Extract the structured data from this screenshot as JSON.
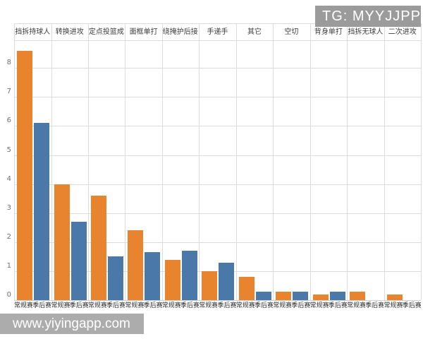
{
  "watermarks": {
    "tg_badge": "TG: MYYJJPP",
    "site": "www.yiyingapp.com"
  },
  "chart_data": {
    "type": "bar",
    "title": "",
    "xlabel": "",
    "ylabel": "",
    "categories": [
      "挡拆持球人",
      "转换进攻",
      "定点投篮成..",
      "面框单打",
      "绕掩护后接..",
      "手递手",
      "其它",
      "空切",
      "背身单打",
      "挡拆无球人",
      "二次进攻"
    ],
    "x_sub_labels": [
      "常规赛",
      "季后赛"
    ],
    "series": [
      {
        "name": "常规赛",
        "color": "#e8832e",
        "values": [
          8.6,
          4.0,
          3.6,
          2.4,
          1.4,
          1.0,
          0.8,
          0.3,
          0.2,
          0.3,
          0.2
        ]
      },
      {
        "name": "季后赛",
        "color": "#4a78a8",
        "values": [
          6.1,
          2.7,
          1.5,
          1.65,
          1.7,
          1.3,
          0.3,
          0.3,
          0.3,
          0,
          0
        ]
      }
    ],
    "y_ticks": [
      0,
      1,
      2,
      3,
      4,
      5,
      6,
      7,
      8
    ],
    "ylim": [
      0,
      9.1
    ],
    "grid": true,
    "legend_position": "none",
    "colors": {
      "regular_season_bar": "#e8832e",
      "playoffs_bar": "#4a78a8",
      "gridline": "#dcdcdc",
      "header_text": "#3c3c3c",
      "tick_text": "#707070",
      "watermark_bg": "#9b9b9b"
    }
  }
}
